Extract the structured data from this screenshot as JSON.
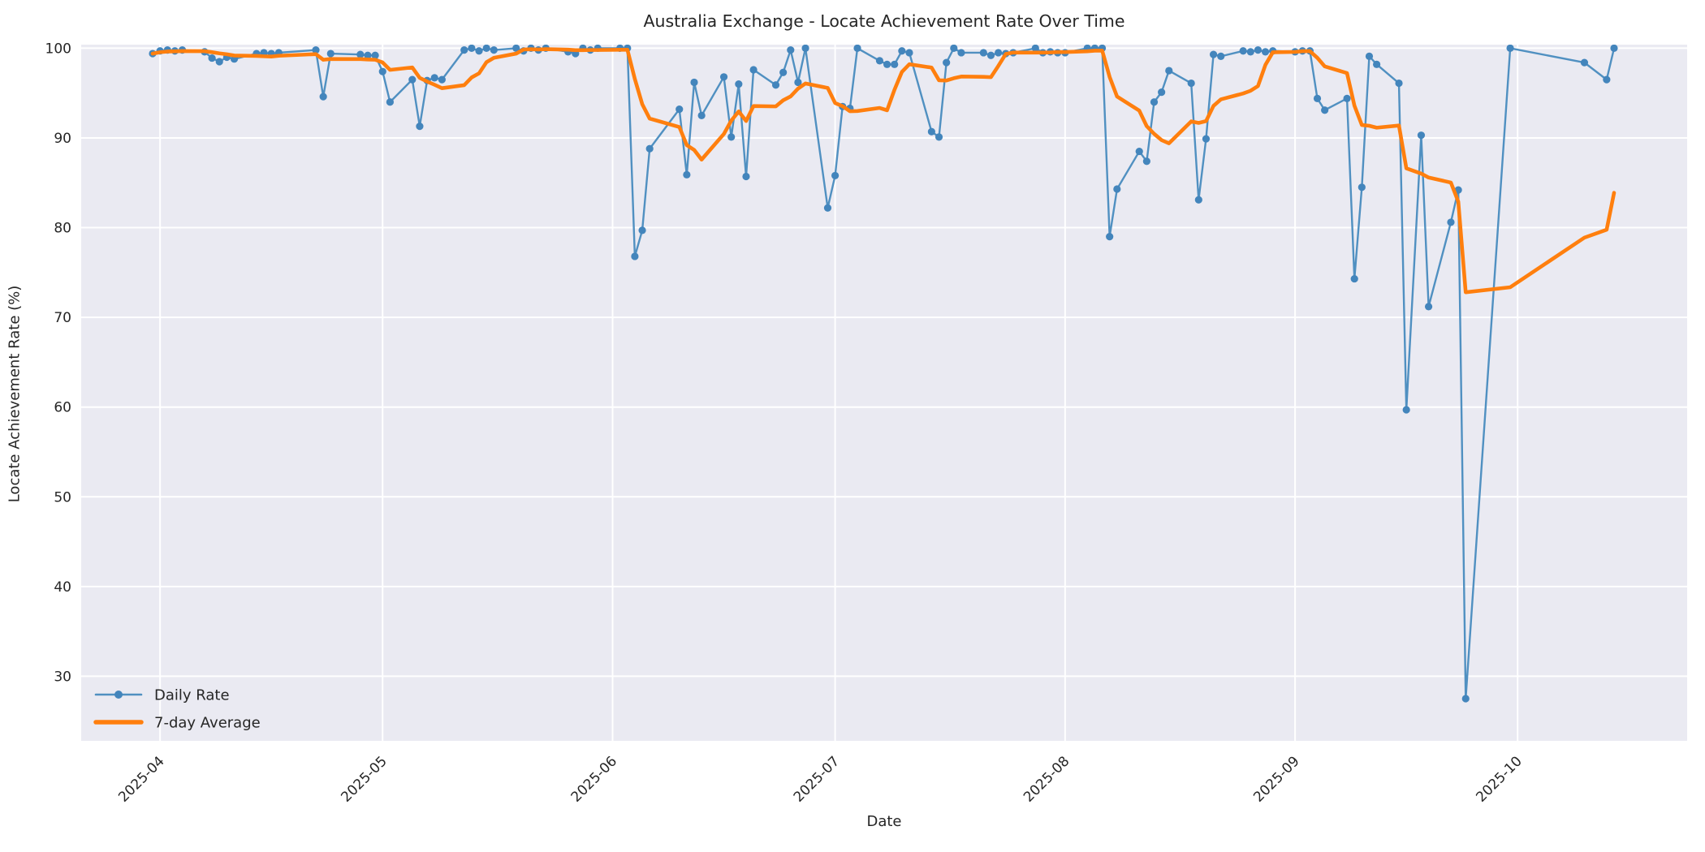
{
  "figure": {
    "title": "Australia Exchange - Locate Achievement Rate Over Time",
    "xlabel": "Date",
    "ylabel": "Locate Achievement Rate (%)"
  },
  "colors": {
    "figure_bg": "#ffffff",
    "plot_bg": "#eaeaf2",
    "grid": "#ffffff",
    "daily_line": "#5090c1",
    "daily_marker": "#4385bc",
    "average_line": "#ff7f0e",
    "text": "#262626"
  },
  "chart_data": {
    "type": "line",
    "title": "Australia Exchange - Locate Achievement Rate Over Time",
    "xlabel": "Date",
    "ylabel": "Locate Achievement Rate (%)",
    "x_tick_labels": [
      "2025-04",
      "2025-05",
      "2025-06",
      "2025-07",
      "2025-08",
      "2025-09",
      "2025-10"
    ],
    "y_ticks": [
      30,
      40,
      50,
      60,
      70,
      80,
      90,
      100
    ],
    "ylim": [
      22.8,
      100.4
    ],
    "grid": true,
    "legend_position": "lower left",
    "legend_entries": [
      "Daily Rate",
      "7-day Average"
    ],
    "series": [
      {
        "name": "Daily Rate",
        "dates": [
          "2025-03-31",
          "2025-04-01",
          "2025-04-02",
          "2025-04-03",
          "2025-04-04",
          "2025-04-07",
          "2025-04-08",
          "2025-04-09",
          "2025-04-10",
          "2025-04-11",
          "2025-04-14",
          "2025-04-15",
          "2025-04-16",
          "2025-04-17",
          "2025-04-22",
          "2025-04-23",
          "2025-04-24",
          "2025-04-28",
          "2025-04-29",
          "2025-04-30",
          "2025-05-01",
          "2025-05-02",
          "2025-05-05",
          "2025-05-06",
          "2025-05-07",
          "2025-05-08",
          "2025-05-09",
          "2025-05-12",
          "2025-05-13",
          "2025-05-14",
          "2025-05-15",
          "2025-05-16",
          "2025-05-19",
          "2025-05-20",
          "2025-05-21",
          "2025-05-22",
          "2025-05-23",
          "2025-05-26",
          "2025-05-27",
          "2025-05-28",
          "2025-05-29",
          "2025-05-30",
          "2025-06-02",
          "2025-06-03",
          "2025-06-04",
          "2025-06-05",
          "2025-06-06",
          "2025-06-10",
          "2025-06-11",
          "2025-06-12",
          "2025-06-13",
          "2025-06-16",
          "2025-06-17",
          "2025-06-18",
          "2025-06-19",
          "2025-06-20",
          "2025-06-23",
          "2025-06-24",
          "2025-06-25",
          "2025-06-26",
          "2025-06-27",
          "2025-06-30",
          "2025-07-01",
          "2025-07-02",
          "2025-07-03",
          "2025-07-04",
          "2025-07-07",
          "2025-07-08",
          "2025-07-09",
          "2025-07-10",
          "2025-07-11",
          "2025-07-14",
          "2025-07-15",
          "2025-07-16",
          "2025-07-17",
          "2025-07-18",
          "2025-07-21",
          "2025-07-22",
          "2025-07-23",
          "2025-07-24",
          "2025-07-25",
          "2025-07-28",
          "2025-07-29",
          "2025-07-30",
          "2025-07-31",
          "2025-08-01",
          "2025-08-04",
          "2025-08-05",
          "2025-08-06",
          "2025-08-07",
          "2025-08-08",
          "2025-08-11",
          "2025-08-12",
          "2025-08-13",
          "2025-08-14",
          "2025-08-15",
          "2025-08-18",
          "2025-08-19",
          "2025-08-20",
          "2025-08-21",
          "2025-08-22",
          "2025-08-25",
          "2025-08-26",
          "2025-08-27",
          "2025-08-28",
          "2025-08-29",
          "2025-09-01",
          "2025-09-02",
          "2025-09-03",
          "2025-09-04",
          "2025-09-05",
          "2025-09-08",
          "2025-09-09",
          "2025-09-10",
          "2025-09-11",
          "2025-09-12",
          "2025-09-15",
          "2025-09-16",
          "2025-09-18",
          "2025-09-19",
          "2025-09-22",
          "2025-09-23",
          "2025-09-24",
          "2025-09-30",
          "2025-10-10",
          "2025-10-13",
          "2025-10-14"
        ],
        "values": [
          99.4,
          99.7,
          99.8,
          99.7,
          99.8,
          99.6,
          98.9,
          98.5,
          99.0,
          98.8,
          99.4,
          99.5,
          99.4,
          99.5,
          99.8,
          94.6,
          99.4,
          99.3,
          99.2,
          99.2,
          97.4,
          94.0,
          96.5,
          91.3,
          96.4,
          96.7,
          96.5,
          99.8,
          100,
          99.7,
          100,
          99.8,
          100,
          99.7,
          100,
          99.8,
          100,
          99.6,
          99.4,
          100,
          99.8,
          100,
          100,
          100,
          76.8,
          79.7,
          88.8,
          93.2,
          85.9,
          96.2,
          92.5,
          96.8,
          90.1,
          96.0,
          85.7,
          97.6,
          95.9,
          97.3,
          99.8,
          96.2,
          100,
          82.2,
          85.8,
          93.5,
          93.3,
          100,
          98.6,
          98.2,
          98.2,
          99.7,
          99.5,
          90.7,
          90.1,
          98.4,
          100,
          99.5,
          99.5,
          99.2,
          99.5,
          99.4,
          99.5,
          100,
          99.5,
          99.6,
          99.5,
          99.5,
          100,
          100,
          100,
          79.0,
          84.3,
          88.5,
          87.4,
          94.0,
          95.1,
          97.5,
          96.1,
          83.1,
          89.9,
          99.3,
          99.1,
          99.7,
          99.6,
          99.8,
          99.6,
          99.7,
          99.6,
          99.7,
          99.7,
          94.4,
          93.1,
          94.4,
          74.3,
          84.5,
          99.1,
          98.2,
          96.1,
          59.7,
          90.3,
          71.2,
          80.6,
          84.2,
          27.5,
          100,
          98.4,
          96.5,
          100
        ]
      },
      {
        "name": "7-day Average",
        "derivation": "7-point rolling mean (min_periods=1) of Daily Rate"
      }
    ]
  }
}
